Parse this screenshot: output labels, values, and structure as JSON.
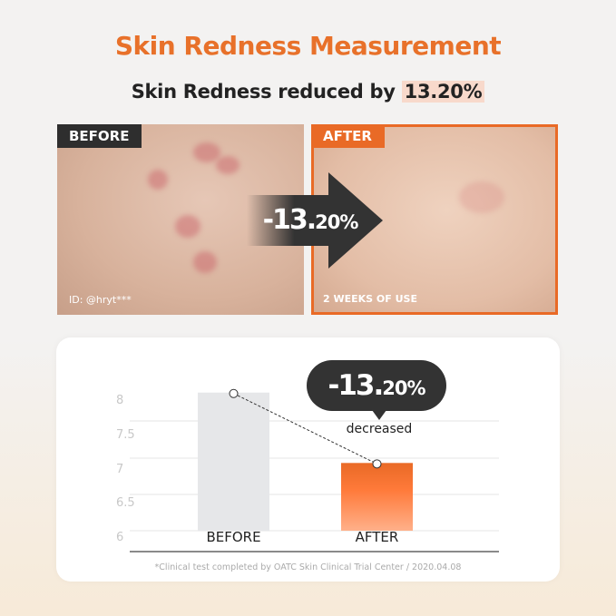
{
  "title": "Skin Redness Measurement",
  "subtitle": {
    "text": "Skin Redness reduced by ",
    "highlight": "13.20%"
  },
  "photos": {
    "before": {
      "label": "BEFORE",
      "caption": "ID: @hryt***"
    },
    "after": {
      "label": "AFTER",
      "caption": "2 WEEKS OF USE"
    }
  },
  "arrow": {
    "big": "-13.",
    "small": "20%"
  },
  "callout": {
    "big": "-13.",
    "small": "20%",
    "note": "decreased"
  },
  "footnote": "*Clinical test completed by OATC Skin Clinical Trial Center / 2020.04.08",
  "colors": {
    "accent": "#e96a26",
    "before_bar": "#e6e7e9",
    "dark": "#333333",
    "highlight": "#f8d9cb"
  },
  "chart_data": {
    "type": "bar",
    "categories": [
      "BEFORE",
      "AFTER"
    ],
    "values": [
      8.1,
      7.03
    ],
    "yticks": [
      "8",
      "7.5",
      "7",
      "6.5",
      "6"
    ],
    "ylim": [
      6,
      8.2
    ],
    "grid": true,
    "annotation": "-13.20% decreased"
  }
}
